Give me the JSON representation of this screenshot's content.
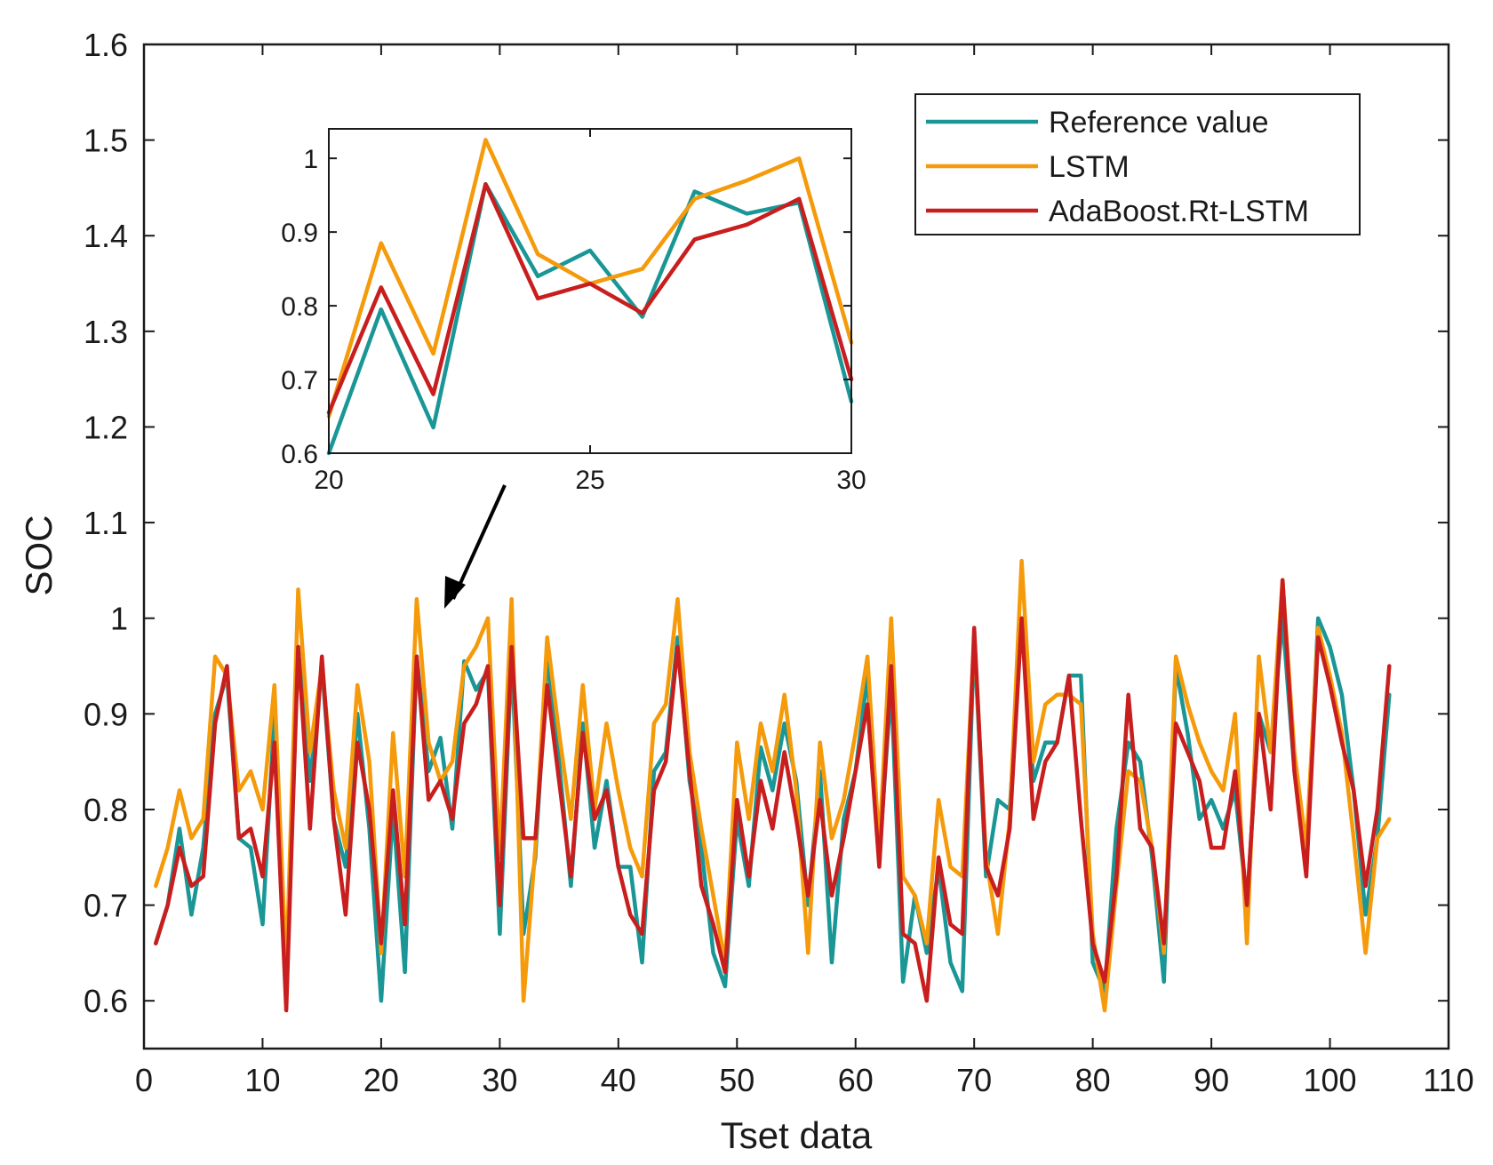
{
  "chart_data": [
    {
      "type": "line",
      "xlabel": "Tset data",
      "ylabel": "SOC",
      "xlim": [
        0,
        110
      ],
      "ylim": [
        0.55,
        1.6
      ],
      "xticks": [
        0,
        10,
        20,
        30,
        40,
        50,
        60,
        70,
        80,
        90,
        100,
        110
      ],
      "xtick_labels": [
        "0",
        "10",
        "20",
        "30",
        "40",
        "50",
        "60",
        "70",
        "80",
        "90",
        "100",
        "110"
      ],
      "yticks": [
        0.6,
        0.7,
        0.8,
        0.9,
        1.0,
        1.1,
        1.2,
        1.3,
        1.4,
        1.5,
        1.6
      ],
      "ytick_labels": [
        "0.6",
        "0.7",
        "0.8",
        "0.9",
        "1",
        "1.1",
        "1.2",
        "1.3",
        "1.4",
        "1.5",
        "1.6"
      ],
      "grid": false,
      "legend_position": "top-right",
      "series": [
        {
          "name": "Reference value",
          "color": "#1a9696",
          "values": [
            0.66,
            0.7,
            0.78,
            0.69,
            0.76,
            0.9,
            0.94,
            0.77,
            0.76,
            0.68,
            0.9,
            0.62,
            0.97,
            0.83,
            0.95,
            0.79,
            0.74,
            0.9,
            0.78,
            0.6,
            0.8,
            0.63,
            0.96,
            0.84,
            0.875,
            0.78,
            0.955,
            0.925,
            0.945,
            0.67,
            0.96,
            0.67,
            0.75,
            0.96,
            0.85,
            0.72,
            0.89,
            0.76,
            0.83,
            0.74,
            0.74,
            0.64,
            0.84,
            0.86,
            0.98,
            0.83,
            0.76,
            0.65,
            0.615,
            0.79,
            0.72,
            0.865,
            0.82,
            0.89,
            0.83,
            0.7,
            0.84,
            0.64,
            0.79,
            0.84,
            0.94,
            0.75,
            0.93,
            0.62,
            0.71,
            0.65,
            0.74,
            0.64,
            0.61,
            0.98,
            0.73,
            0.81,
            0.8,
            1.0,
            0.83,
            0.87,
            0.87,
            0.94,
            0.94,
            0.64,
            0.61,
            0.78,
            0.87,
            0.85,
            0.75,
            0.62,
            0.95,
            0.88,
            0.79,
            0.81,
            0.78,
            0.82,
            0.7,
            0.9,
            0.86,
            1.0,
            0.84,
            0.74,
            1.0,
            0.97,
            0.92,
            0.82,
            0.69,
            0.77,
            0.92
          ]
        },
        {
          "name": "LSTM",
          "color": "#f59a0a",
          "values": [
            0.72,
            0.76,
            0.82,
            0.77,
            0.79,
            0.96,
            0.94,
            0.82,
            0.84,
            0.8,
            0.93,
            0.63,
            1.03,
            0.86,
            0.95,
            0.82,
            0.76,
            0.93,
            0.85,
            0.65,
            0.88,
            0.73,
            1.02,
            0.87,
            0.83,
            0.85,
            0.95,
            0.97,
            1.0,
            0.75,
            1.02,
            0.6,
            0.76,
            0.98,
            0.88,
            0.79,
            0.93,
            0.8,
            0.89,
            0.82,
            0.76,
            0.73,
            0.89,
            0.91,
            1.02,
            0.86,
            0.78,
            0.71,
            0.64,
            0.87,
            0.79,
            0.89,
            0.84,
            0.92,
            0.82,
            0.65,
            0.87,
            0.77,
            0.81,
            0.88,
            0.96,
            0.76,
            1.0,
            0.73,
            0.71,
            0.66,
            0.81,
            0.74,
            0.73,
            0.98,
            0.75,
            0.67,
            0.79,
            1.06,
            0.85,
            0.91,
            0.92,
            0.92,
            0.91,
            0.67,
            0.59,
            0.72,
            0.84,
            0.83,
            0.76,
            0.65,
            0.96,
            0.91,
            0.87,
            0.84,
            0.82,
            0.9,
            0.66,
            0.96,
            0.86,
            1.04,
            0.86,
            0.76,
            0.99,
            0.94,
            0.88,
            0.77,
            0.65,
            0.77,
            0.79
          ]
        },
        {
          "name": "AdaBoost.Rt-LSTM",
          "color": "#c81e1e",
          "values": [
            0.66,
            0.7,
            0.76,
            0.72,
            0.73,
            0.89,
            0.95,
            0.77,
            0.78,
            0.73,
            0.87,
            0.59,
            0.97,
            0.78,
            0.96,
            0.79,
            0.69,
            0.87,
            0.8,
            0.66,
            0.82,
            0.68,
            0.96,
            0.81,
            0.83,
            0.79,
            0.89,
            0.91,
            0.95,
            0.7,
            0.97,
            0.77,
            0.77,
            0.93,
            0.83,
            0.73,
            0.88,
            0.79,
            0.82,
            0.74,
            0.69,
            0.67,
            0.82,
            0.85,
            0.97,
            0.84,
            0.72,
            0.68,
            0.63,
            0.81,
            0.73,
            0.83,
            0.78,
            0.86,
            0.79,
            0.71,
            0.81,
            0.71,
            0.77,
            0.84,
            0.91,
            0.74,
            0.95,
            0.67,
            0.66,
            0.6,
            0.75,
            0.68,
            0.67,
            0.99,
            0.74,
            0.71,
            0.78,
            1.0,
            0.79,
            0.85,
            0.87,
            0.94,
            0.79,
            0.66,
            0.62,
            0.73,
            0.92,
            0.78,
            0.76,
            0.66,
            0.89,
            0.86,
            0.83,
            0.76,
            0.76,
            0.84,
            0.7,
            0.9,
            0.8,
            1.04,
            0.84,
            0.73,
            0.98,
            0.93,
            0.87,
            0.82,
            0.72,
            0.8,
            0.95
          ]
        }
      ]
    },
    {
      "type": "line",
      "inset_of": "main",
      "xlim": [
        20,
        30
      ],
      "ylim": [
        0.6,
        1.04
      ],
      "xticks": [
        20,
        25,
        30
      ],
      "xtick_labels": [
        "20",
        "25",
        "30"
      ],
      "yticks": [
        0.6,
        0.7,
        0.8,
        0.9,
        1.0
      ],
      "ytick_labels": [
        "0.6",
        "0.7",
        "0.8",
        "0.9",
        "1"
      ],
      "x": [
        20,
        21,
        22,
        23,
        24,
        25,
        26,
        27,
        28,
        29,
        30
      ],
      "series": [
        {
          "name": "Reference value",
          "color": "#1a9696",
          "values": [
            0.6,
            0.795,
            0.635,
            0.965,
            0.84,
            0.875,
            0.785,
            0.955,
            0.925,
            0.94,
            0.67
          ]
        },
        {
          "name": "LSTM",
          "color": "#f59a0a",
          "values": [
            0.65,
            0.885,
            0.735,
            1.025,
            0.87,
            0.83,
            0.85,
            0.945,
            0.97,
            1.0,
            0.75
          ]
        },
        {
          "name": "AdaBoost.Rt-LSTM",
          "color": "#c81e1e",
          "values": [
            0.655,
            0.825,
            0.68,
            0.965,
            0.81,
            0.83,
            0.79,
            0.89,
            0.91,
            0.945,
            0.7
          ]
        }
      ]
    }
  ]
}
